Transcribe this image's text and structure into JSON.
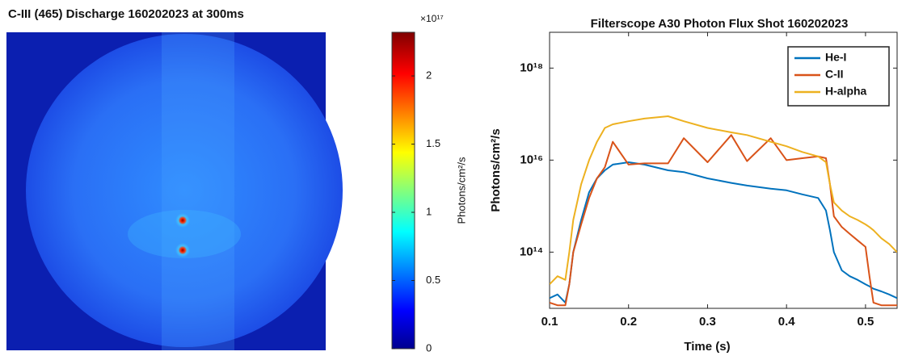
{
  "chart_data": [
    {
      "type": "image",
      "title": "C-III (465) Discharge 160202023 at 300ms",
      "colorbar": {
        "label": "Photons/cm²/s",
        "exponent_label": "×10¹⁷",
        "clim": [
          0,
          2.32
        ],
        "ticks": [
          0,
          0.5,
          1,
          1.5,
          2
        ]
      }
    },
    {
      "type": "line",
      "title": "Filterscope A30 Photon Flux Shot 160202023",
      "x_label": "Time (s)",
      "y_label": "Photons/cm²/s",
      "x": [
        0.1,
        0.11,
        0.12,
        0.125,
        0.13,
        0.14,
        0.15,
        0.16,
        0.17,
        0.18,
        0.2,
        0.22,
        0.25,
        0.27,
        0.3,
        0.33,
        0.35,
        0.38,
        0.4,
        0.42,
        0.44,
        0.45,
        0.455,
        0.46,
        0.47,
        0.48,
        0.49,
        0.5,
        0.505,
        0.51,
        0.52,
        0.53,
        0.54
      ],
      "xlim": [
        0.1,
        0.54
      ],
      "xticks": [
        0.1,
        0.2,
        0.3,
        0.4,
        0.5
      ],
      "ylim": [
        6000000000000.0,
        6e+18
      ],
      "log_y": true,
      "yticks": [
        {
          "value": 100000000000000.0,
          "label": "10¹⁴"
        },
        {
          "value": 1e+16,
          "label": "10¹⁶"
        },
        {
          "value": 1e+18,
          "label": "10¹⁸"
        }
      ],
      "legend": "upper right",
      "series": [
        {
          "name": "He-I",
          "color": "#0072bd",
          "values": [
            10000000000000.0,
            12000000000000.0,
            8000000000000.0,
            20000000000000.0,
            100000000000000.0,
            500000000000000.0,
            2000000000000000.0,
            4000000000000000.0,
            6000000000000000.0,
            8000000000000000.0,
            9000000000000000.0,
            8000000000000000.0,
            6000000000000000.0,
            5500000000000000.0,
            4000000000000000.0,
            3200000000000000.0,
            2800000000000000.0,
            2400000000000000.0,
            2200000000000000.0,
            1800000000000000.0,
            1500000000000000.0,
            800000000000000.0,
            300000000000000.0,
            100000000000000.0,
            40000000000000.0,
            30000000000000.0,
            25000000000000.0,
            20000000000000.0,
            18000000000000.0,
            16000000000000.0,
            14000000000000.0,
            12000000000000.0,
            10000000000000.0
          ]
        },
        {
          "name": "C-II",
          "color": "#d95319",
          "values": [
            8000000000000.0,
            7000000000000.0,
            7000000000000.0,
            20000000000000.0,
            100000000000000.0,
            400000000000000.0,
            1500000000000000.0,
            4000000000000000.0,
            7000000000000000.0,
            2.5e+16,
            8000000000000000.0,
            8500000000000000.0,
            8500000000000000.0,
            3e+16,
            9000000000000000.0,
            3.5e+16,
            9500000000000000.0,
            3e+16,
            1e+16,
            1.1e+16,
            1.2e+16,
            1.1e+16,
            3000000000000000.0,
            600000000000000.0,
            350000000000000.0,
            250000000000000.0,
            180000000000000.0,
            130000000000000.0,
            30000000000000.0,
            8000000000000.0,
            7000000000000.0,
            7000000000000.0,
            7000000000000.0
          ]
        },
        {
          "name": "H-alpha",
          "color": "#edb120",
          "values": [
            20000000000000.0,
            30000000000000.0,
            25000000000000.0,
            100000000000000.0,
            500000000000000.0,
            3000000000000000.0,
            1e+16,
            2.5e+16,
            5e+16,
            6e+16,
            7e+16,
            8e+16,
            9e+16,
            7e+16,
            5e+16,
            4e+16,
            3.5e+16,
            2.5e+16,
            2e+16,
            1.5e+16,
            1.2e+16,
            9000000000000000.0,
            3000000000000000.0,
            1200000000000000.0,
            800000000000000.0,
            600000000000000.0,
            500000000000000.0,
            400000000000000.0,
            350000000000000.0,
            300000000000000.0,
            200000000000000.0,
            150000000000000.0,
            100000000000000.0
          ]
        }
      ]
    }
  ]
}
